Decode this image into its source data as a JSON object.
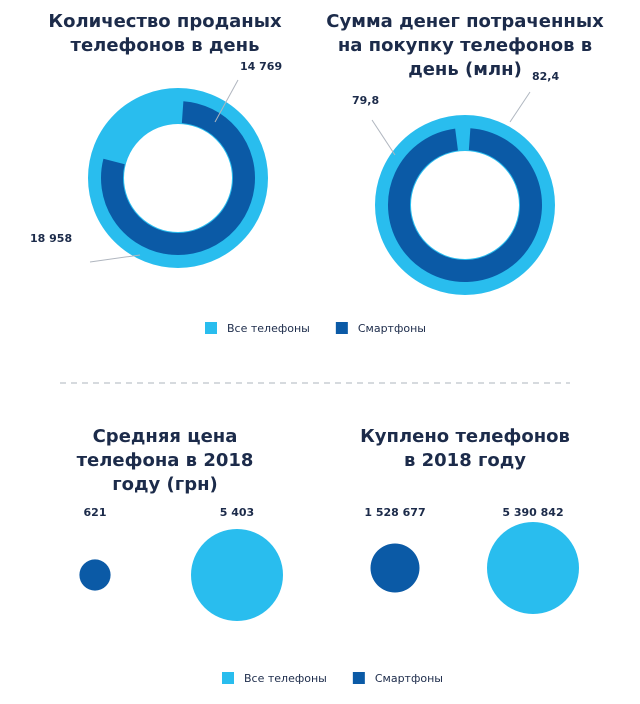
{
  "chart_data": [
    {
      "type": "donut",
      "categories": [
        "Количество проданых телефонов в день",
        "Сумма денег потраченных на покупку телефонов в день (млн)"
      ],
      "series": [
        {
          "name": "Все телефоны",
          "color": "#29bdee",
          "values": [
            18958,
            82.4
          ],
          "value_labels": [
            "18 958",
            "82,4"
          ]
        },
        {
          "name": "Смартфоны",
          "color": "#0b5aa6",
          "values": [
            14769,
            79.8
          ],
          "value_labels": [
            "14 769",
            "79,8"
          ]
        }
      ]
    },
    {
      "type": "bubble",
      "categories": [
        "Средняя цена телефона в 2018 году (грн)",
        "Куплено телефонов в 2018 году"
      ],
      "series": [
        {
          "name": "Все телефоны",
          "color": "#29bdee",
          "values": [
            5403,
            5390842
          ],
          "value_labels": [
            "5 403",
            "5 390 842"
          ]
        },
        {
          "name": "Смартфоны",
          "color": "#0b5aa6",
          "values": [
            621,
            1528677
          ],
          "value_labels": [
            "621",
            "1 528 677"
          ]
        }
      ]
    }
  ]
}
